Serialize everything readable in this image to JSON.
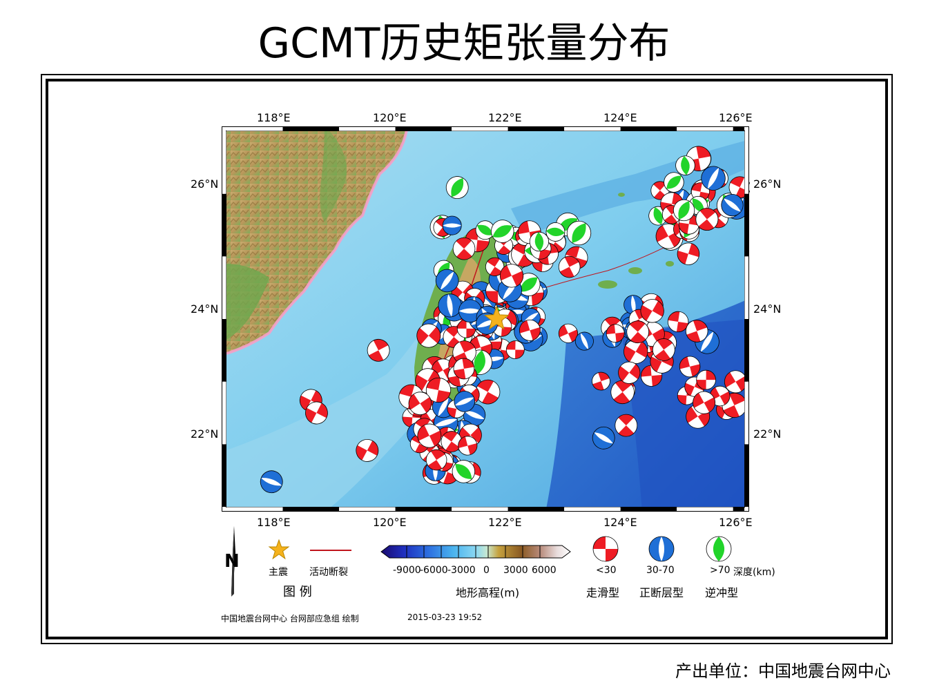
{
  "title": "GCMT历史矩张量分布",
  "map": {
    "lon_labels": [
      "118°E",
      "120°E",
      "122°E",
      "124°E",
      "126°E"
    ],
    "lat_labels": [
      "26°N",
      "24°N",
      "22°N"
    ],
    "lon_range": [
      117.0,
      126.2
    ],
    "lat_range": [
      20.8,
      26.8
    ],
    "mainshock": {
      "lon": 121.8,
      "lat": 23.8,
      "color": "#f5b21c"
    }
  },
  "legend": {
    "north_label": "N",
    "mainshock_label": "主震",
    "fault_label": "活动断裂",
    "fault_color": "#c0141c",
    "legend_title": "图  例",
    "colorbar_ticks": [
      "-9000",
      "-6000",
      "-3000",
      "0",
      "3000",
      "6000"
    ],
    "colorbar_title": "地形高程(m)",
    "depth_labels": [
      "<30",
      "30-70",
      ">70"
    ],
    "depth_unit": "深度(km)",
    "mechanism_labels": [
      "走滑型",
      "正断层型",
      "逆冲型"
    ],
    "colors": {
      "strike_slip": "#ee1c24",
      "normal": "#1f6fd6",
      "thrust": "#22d42a"
    }
  },
  "credit": {
    "org": "中国地震台网中心 台网部应急组 绘制",
    "time": "2015-03-23 19:52"
  },
  "footer": "产出单位：中国地震台网中心"
}
